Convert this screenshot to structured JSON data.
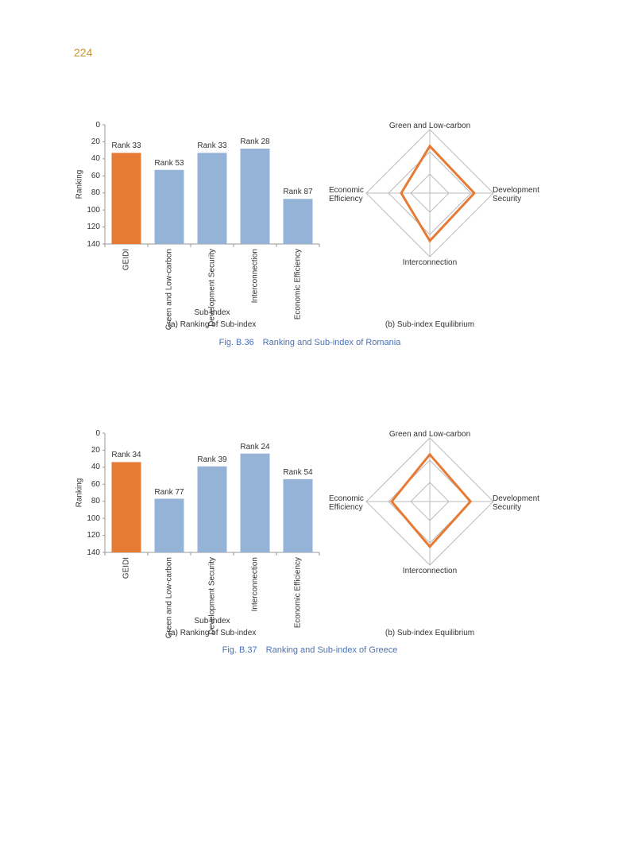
{
  "page_number": "224",
  "captions": [
    "Fig. B.36 Ranking and Sub-index of Romania",
    "Fig. B.37 Ranking and Sub-index of Greece"
  ],
  "chart_data": [
    {
      "type": "bar",
      "caption": "(a) Ranking of Sub-index",
      "xlabel": "Sub-index",
      "ylabel": "Ranking",
      "categories": [
        "GEIDI",
        "Green and Low-carbon",
        "Development Security",
        "Interconnection",
        "Economic Efficiency"
      ],
      "values": [
        33,
        53,
        33,
        28,
        87
      ],
      "value_labels": [
        "Rank 33",
        "Rank 53",
        "Rank 33",
        "Rank 28",
        "Rank 87"
      ],
      "colors": [
        "#e57b35",
        "#95b3d7",
        "#95b3d7",
        "#95b3d7",
        "#95b3d7"
      ],
      "ylim": [
        0,
        140
      ],
      "yticks": [
        0,
        20,
        40,
        60,
        80,
        100,
        120,
        140
      ],
      "inverted_y": true
    },
    {
      "type": "radar",
      "caption": "(b) Sub-index Equilibrium",
      "categories": [
        "Green and Low-carbon",
        "Development Security",
        "Interconnection",
        "Economic Efficiency"
      ],
      "values": [
        0.74,
        0.7,
        0.75,
        0.45
      ],
      "color": "#e57b35",
      "rlim": [
        0,
        1
      ],
      "rticks": [
        0.3,
        0.65,
        1
      ]
    },
    {
      "type": "bar",
      "caption": "(a) Ranking of Sub-index",
      "xlabel": "Sub-index",
      "ylabel": "Ranking",
      "categories": [
        "GEIDI",
        "Green and Low-carbon",
        "Development Security",
        "Interconnection",
        "Economic Efficiency"
      ],
      "values": [
        34,
        77,
        39,
        24,
        54
      ],
      "value_labels": [
        "Rank 34",
        "Rank 77",
        "Rank 39",
        "Rank 24",
        "Rank 54"
      ],
      "colors": [
        "#e57b35",
        "#95b3d7",
        "#95b3d7",
        "#95b3d7",
        "#95b3d7"
      ],
      "ylim": [
        0,
        140
      ],
      "yticks": [
        0,
        20,
        40,
        60,
        80,
        100,
        120,
        140
      ],
      "inverted_y": true
    },
    {
      "type": "radar",
      "caption": "(b) Sub-index Equilibrium",
      "categories": [
        "Green and Low-carbon",
        "Development Security",
        "Interconnection",
        "Economic Efficiency"
      ],
      "values": [
        0.74,
        0.64,
        0.71,
        0.6
      ],
      "color": "#e57b35",
      "rlim": [
        0,
        1
      ],
      "rticks": [
        0.3,
        0.65,
        1
      ]
    }
  ]
}
